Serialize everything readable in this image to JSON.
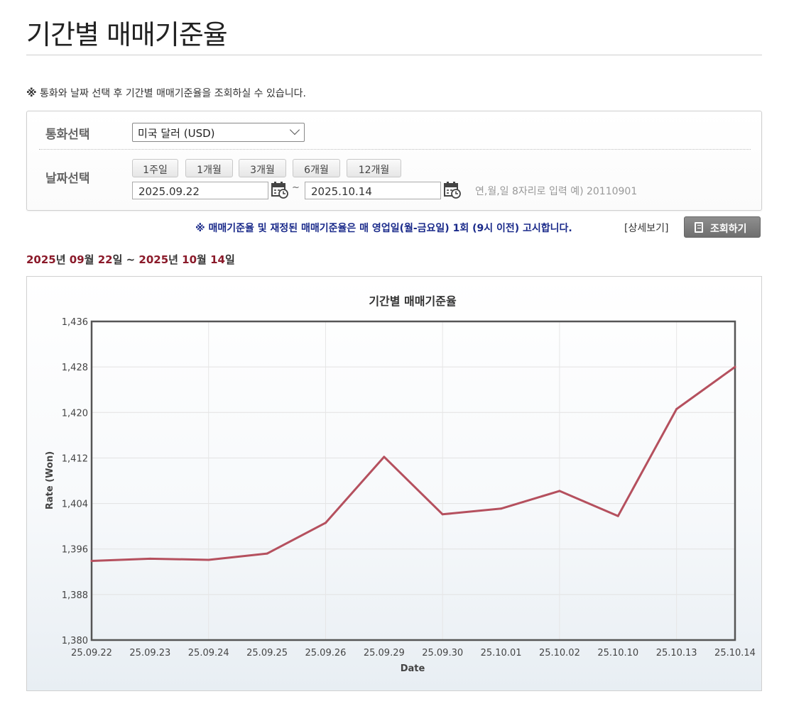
{
  "page": {
    "title": "기간별 매매기준율"
  },
  "notice": {
    "mark": "※",
    "text": " 통화와 날짜 선택 후 기간별 매매기준율을 조회하실 수 있습니다."
  },
  "filter": {
    "currency_label": "통화선택",
    "currency_value": "미국 달러 (USD)",
    "date_label": "날짜선택",
    "period_buttons": [
      "1주일",
      "1개월",
      "3개월",
      "6개월",
      "12개월"
    ],
    "start_date": "2025.09.22",
    "end_date": "2025.10.14",
    "tilde": "~",
    "hint": "연,월,일 8자리로 입력 예) 20110901"
  },
  "actions": {
    "blue_notice": "※ 매매기준율 및 재정된 매매기준율은 매 영업일(월-금요일) 1회 (9시 이전) 고시합니다.",
    "detail_link": "[상세보기]",
    "search_button": "조회하기"
  },
  "range": {
    "y1": "2025",
    "s1": "년 ",
    "m1": "09",
    "s2": "월 ",
    "d1": "22",
    "s3": "일 ~ ",
    "y2": "2025",
    "s4": "년 ",
    "m2": "10",
    "s5": "월 ",
    "d2": "14",
    "s6": "일"
  },
  "colors": {
    "line": "#b5505e",
    "range_accent": "#8b1a2a",
    "notice_blue": "#1a2a8a"
  },
  "chart_data": {
    "type": "line",
    "title": "기간별 매매기준율",
    "xlabel": "Date",
    "ylabel": "Rate (Won)",
    "categories": [
      "25.09.22",
      "25.09.23",
      "25.09.24",
      "25.09.25",
      "25.09.26",
      "25.09.29",
      "25.09.30",
      "25.10.01",
      "25.10.02",
      "25.10.10",
      "25.10.13",
      "25.10.14"
    ],
    "series": [
      {
        "values": [
          1393.9,
          1394.3,
          1394.1,
          1395.2,
          1400.6,
          1412.2,
          1402.1,
          1403.1,
          1406.2,
          1401.8,
          1420.6,
          1428.0
        ]
      }
    ],
    "ylim": [
      1380,
      1436
    ],
    "yticks": [
      1380,
      1388,
      1396,
      1404,
      1412,
      1420,
      1428,
      1436
    ],
    "ytick_labels": [
      "1,380",
      "1,388",
      "1,396",
      "1,404",
      "1,412",
      "1,420",
      "1,428",
      "1,436"
    ],
    "grid": true,
    "legend": "none"
  }
}
